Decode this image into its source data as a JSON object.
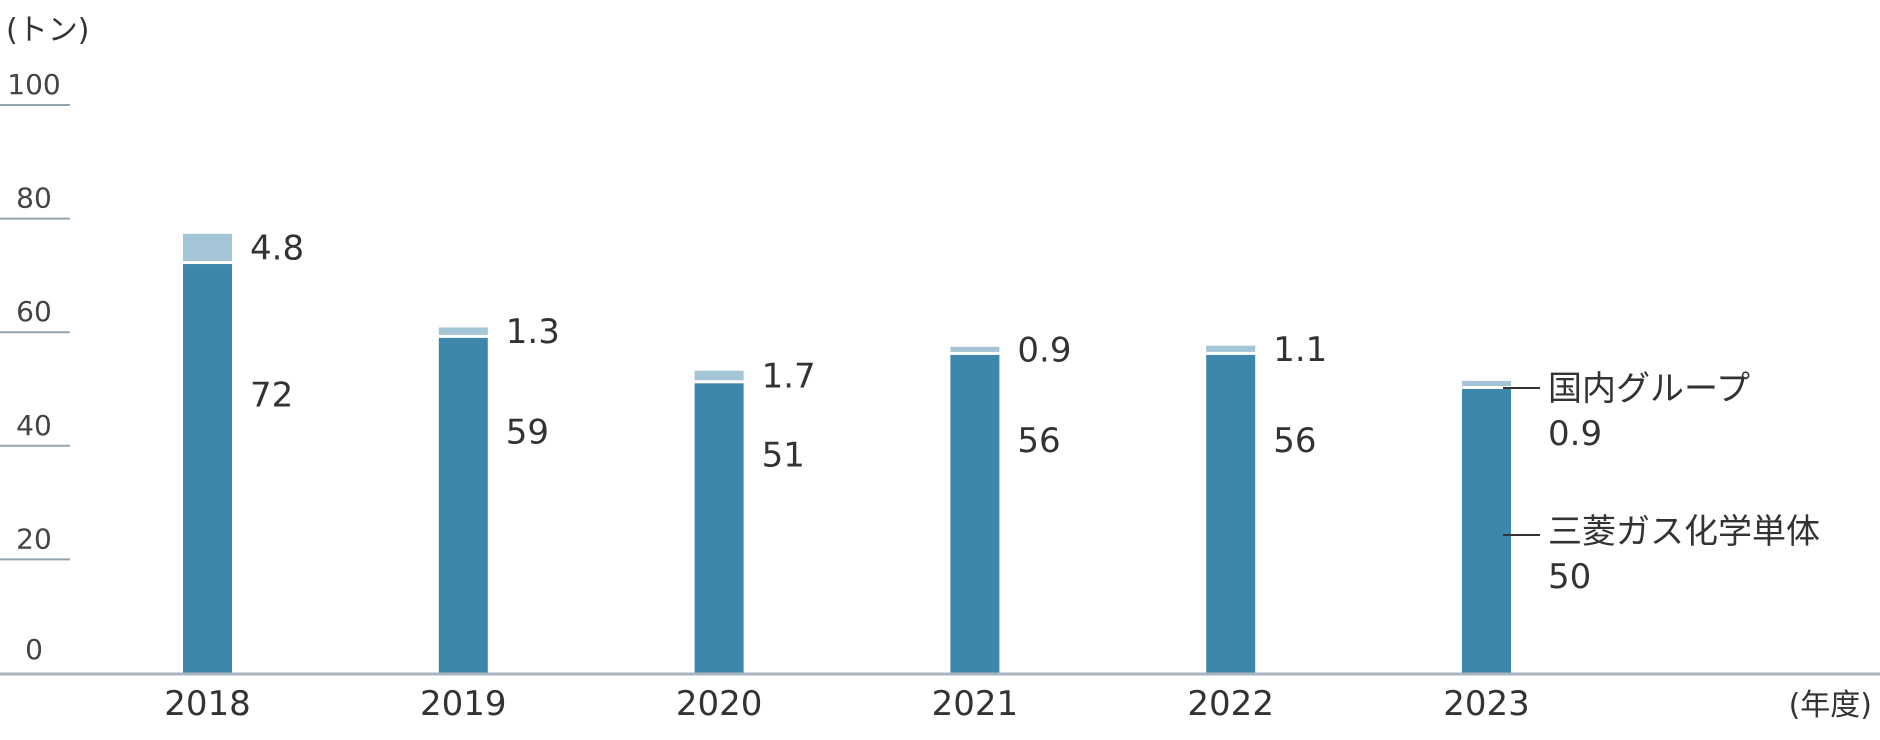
{
  "chart_data": {
    "type": "bar",
    "stacked": true,
    "y_unit": "(トン)",
    "x_unit": "(年度)",
    "ylim": [
      0,
      100
    ],
    "yticks": [
      0,
      20,
      40,
      60,
      80,
      100
    ],
    "categories": [
      "2018",
      "2019",
      "2020",
      "2021",
      "2022",
      "2023"
    ],
    "series": [
      {
        "name": "三菱ガス化学単体",
        "values": [
          72,
          59,
          51,
          56,
          56,
          50
        ],
        "labels": [
          "72",
          "59",
          "51",
          "56",
          "56",
          "50"
        ],
        "color": "#3d87aa"
      },
      {
        "name": "国内グループ",
        "values": [
          4.8,
          1.3,
          1.7,
          0.9,
          1.1,
          0.9
        ],
        "labels": [
          "4.8",
          "1.3",
          "1.7",
          "0.9",
          "1.1",
          "0.9"
        ],
        "color": "#a3c5d5"
      }
    ],
    "legend_placement": "right, inline with last bar"
  },
  "colors": {
    "axis": "#a9b4bc",
    "tick": "#8fa3b0"
  }
}
